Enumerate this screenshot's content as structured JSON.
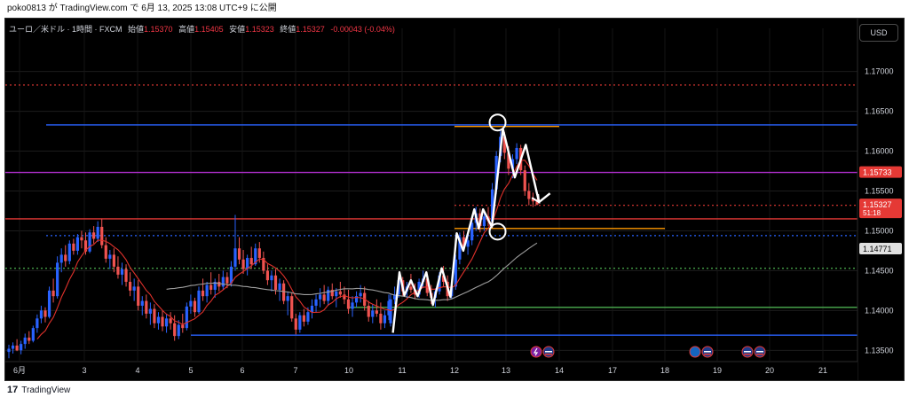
{
  "header": {
    "published": "poko0813 が TradingView.com で 6月 13, 2025 13:08 UTC+9 に公開"
  },
  "legend": {
    "symbol": "ユーロ／米ドル · 1時間 · FXCM",
    "open_label": "始値",
    "open": "1.15370",
    "high_label": "高値",
    "high": "1.15405",
    "low_label": "安値",
    "low": "1.15323",
    "close_label": "終値",
    "close": "1.15327",
    "change": "-0.00043 (-0.04%)"
  },
  "currency_button": "USD",
  "brand": {
    "name": "TradingView",
    "logo_text": "17"
  },
  "colors": {
    "up": "#26a69a",
    "down": "#ef5350",
    "candle_body": "#2962ff",
    "ma_fast": "#e0312b",
    "ma_slow": "#9e9e9e",
    "price_tag_red": "#e53935",
    "blue_line": "#2962ff",
    "purple_line": "#b32fd0",
    "orange_line": "#ff9800",
    "green_line": "#4caf50"
  },
  "chart_data": {
    "type": "candlestick",
    "interval": "1時間",
    "symbol": "EURUSD",
    "x_tick_labels": [
      "6月",
      "3",
      "4",
      "5",
      "6",
      "7",
      "10",
      "11",
      "12",
      "13",
      "14",
      "17",
      "18",
      "19",
      "20",
      "21"
    ],
    "y_tick_labels": [
      "1.17000",
      "1.16500",
      "1.16000",
      "1.15500",
      "1.15000",
      "1.14500",
      "1.14000",
      "1.13500"
    ],
    "ylim": [
      1.1337,
      1.1743
    ],
    "price_tags": [
      {
        "value": 1.15733,
        "text": "1.15733",
        "color": "#e53935"
      },
      {
        "value": 1.15327,
        "text": "1.15327",
        "sub": "51:18",
        "color": "#e53935"
      },
      {
        "value": 1.14771,
        "text": "1.14771",
        "color": "#e0e0e0"
      }
    ],
    "horizontal_lines": [
      {
        "price": 1.1683,
        "style": "dotted",
        "color": "#e53935",
        "from": "start",
        "to": "end"
      },
      {
        "price": 1.1633,
        "style": "solid",
        "color": "#2962ff",
        "from": "6/2",
        "to": "end"
      },
      {
        "price": 1.1631,
        "style": "solid",
        "color": "#ff9800",
        "from": "6/12",
        "to": "6/14"
      },
      {
        "price": 1.15733,
        "style": "solid",
        "color": "#b32fd0",
        "from": "start",
        "to": "end"
      },
      {
        "price": 1.1532,
        "style": "dotted",
        "color": "#e53935",
        "from": "6/12",
        "to": "end"
      },
      {
        "price": 1.1515,
        "style": "solid",
        "color": "#e53935",
        "from": "start",
        "to": "end"
      },
      {
        "price": 1.1503,
        "style": "solid",
        "color": "#ff9800",
        "from": "6/12",
        "to": "6/18"
      },
      {
        "price": 1.1494,
        "style": "dotted",
        "color": "#2962ff",
        "from": "6/2",
        "to": "end"
      },
      {
        "price": 1.1453,
        "style": "dotted",
        "color": "#4caf50",
        "from": "start",
        "to": "end"
      },
      {
        "price": 1.1404,
        "style": "solid",
        "color": "#4caf50",
        "from": "6/10",
        "to": "end"
      },
      {
        "price": 1.1369,
        "style": "solid",
        "color": "#2962ff",
        "from": "6/5",
        "to": "end"
      }
    ],
    "trend_path": [
      {
        "t": "6/10 20h",
        "price": 1.1372
      },
      {
        "t": "6/10 23h",
        "price": 1.1448
      },
      {
        "t": "6/11 1h",
        "price": 1.1419
      },
      {
        "t": "6/11 4h",
        "price": 1.1438
      },
      {
        "t": "6/11 7h",
        "price": 1.1418
      },
      {
        "t": "6/11 11h",
        "price": 1.1448
      },
      {
        "t": "6/11 14h",
        "price": 1.1407
      },
      {
        "t": "6/11 18h",
        "price": 1.1453
      },
      {
        "t": "6/11 22h",
        "price": 1.1417
      },
      {
        "t": "6/12 1h",
        "price": 1.1497
      },
      {
        "t": "6/12 4h",
        "price": 1.1475
      },
      {
        "t": "6/12 9h",
        "price": 1.1527
      },
      {
        "t": "6/12 11h",
        "price": 1.1503
      },
      {
        "t": "6/12 13h",
        "price": 1.1527
      },
      {
        "t": "6/12 17h",
        "price": 1.1505
      },
      {
        "t": "6/12 22h",
        "price": 1.1628
      },
      {
        "t": "6/13 4h",
        "price": 1.1567
      },
      {
        "t": "6/13 9h",
        "price": 1.1608
      },
      {
        "t": "6/13 15h",
        "price": 1.1536
      },
      {
        "t": "6/13 20h",
        "price": 1.1547
      }
    ],
    "circled_points": [
      {
        "t": "6/12 22h",
        "price": 1.1636
      },
      {
        "t": "6/12 22h",
        "price": 1.1499
      }
    ],
    "event_icons": [
      {
        "date": "6/13",
        "names": [
          "lightning-icon",
          "us-flag-icon"
        ]
      },
      {
        "date": "6/18",
        "names": [
          "eu-flag-icon",
          "us-flag-icon"
        ]
      },
      {
        "date": "6/19",
        "names": [
          "us-flag-icon",
          "us-flag-icon"
        ]
      }
    ],
    "candles_note": "hourly OHLC approximations",
    "candles": [
      [
        1.1348,
        1.1357,
        1.134,
        1.1352
      ],
      [
        1.1352,
        1.136,
        1.1346,
        1.1356
      ],
      [
        1.1356,
        1.1364,
        1.1349,
        1.135
      ],
      [
        1.135,
        1.1362,
        1.1345,
        1.1358
      ],
      [
        1.1358,
        1.1371,
        1.1352,
        1.1366
      ],
      [
        1.1366,
        1.1374,
        1.1358,
        1.1362
      ],
      [
        1.1362,
        1.1381,
        1.136,
        1.1378
      ],
      [
        1.1378,
        1.1395,
        1.1372,
        1.139
      ],
      [
        1.139,
        1.1406,
        1.1384,
        1.14
      ],
      [
        1.14,
        1.1404,
        1.1385,
        1.1392
      ],
      [
        1.1392,
        1.143,
        1.139,
        1.1425
      ],
      [
        1.1425,
        1.144,
        1.141,
        1.1418
      ],
      [
        1.1418,
        1.1468,
        1.1415,
        1.146
      ],
      [
        1.146,
        1.1478,
        1.1448,
        1.147
      ],
      [
        1.147,
        1.1482,
        1.1455,
        1.1462
      ],
      [
        1.1462,
        1.1488,
        1.1458,
        1.1484
      ],
      [
        1.1484,
        1.149,
        1.147,
        1.1475
      ],
      [
        1.1475,
        1.1496,
        1.147,
        1.1492
      ],
      [
        1.1492,
        1.15,
        1.1478,
        1.1488
      ],
      [
        1.1488,
        1.1498,
        1.147,
        1.1474
      ],
      [
        1.1474,
        1.1502,
        1.1472,
        1.1498
      ],
      [
        1.1498,
        1.1506,
        1.1484,
        1.149
      ],
      [
        1.149,
        1.1512,
        1.1486,
        1.1505
      ],
      [
        1.1505,
        1.1515,
        1.1478,
        1.1482
      ],
      [
        1.1482,
        1.1492,
        1.146,
        1.1465
      ],
      [
        1.1465,
        1.1476,
        1.1452,
        1.147
      ],
      [
        1.147,
        1.1478,
        1.1448,
        1.1455
      ],
      [
        1.1455,
        1.1468,
        1.144,
        1.1445
      ],
      [
        1.1445,
        1.146,
        1.1432,
        1.1452
      ],
      [
        1.1452,
        1.1458,
        1.143,
        1.1436
      ],
      [
        1.1436,
        1.1448,
        1.1418,
        1.1425
      ],
      [
        1.1425,
        1.144,
        1.1412,
        1.143
      ],
      [
        1.143,
        1.1438,
        1.14,
        1.1406
      ],
      [
        1.1406,
        1.1418,
        1.1394,
        1.1412
      ],
      [
        1.1412,
        1.142,
        1.139,
        1.1396
      ],
      [
        1.1396,
        1.141,
        1.1382,
        1.1402
      ],
      [
        1.1402,
        1.1408,
        1.1378,
        1.1384
      ],
      [
        1.1384,
        1.1398,
        1.1376,
        1.1392
      ],
      [
        1.1392,
        1.14,
        1.1374,
        1.138
      ],
      [
        1.138,
        1.1396,
        1.1372,
        1.139
      ],
      [
        1.139,
        1.1398,
        1.1376,
        1.1384
      ],
      [
        1.1384,
        1.1394,
        1.1362,
        1.1368
      ],
      [
        1.1368,
        1.1388,
        1.1364,
        1.1382
      ],
      [
        1.1382,
        1.1396,
        1.1372,
        1.1378
      ],
      [
        1.1378,
        1.141,
        1.1375,
        1.1405
      ],
      [
        1.1405,
        1.142,
        1.1396,
        1.1412
      ],
      [
        1.1412,
        1.1416,
        1.1392,
        1.1398
      ],
      [
        1.1398,
        1.143,
        1.1396,
        1.1425
      ],
      [
        1.1425,
        1.144,
        1.1412,
        1.1418
      ],
      [
        1.1418,
        1.1436,
        1.141,
        1.1432
      ],
      [
        1.1432,
        1.1448,
        1.142,
        1.1426
      ],
      [
        1.1426,
        1.144,
        1.1416,
        1.1436
      ],
      [
        1.1436,
        1.1446,
        1.1424,
        1.143
      ],
      [
        1.143,
        1.145,
        1.1426,
        1.1442
      ],
      [
        1.1442,
        1.1448,
        1.1428,
        1.1434
      ],
      [
        1.1434,
        1.1462,
        1.143,
        1.1455
      ],
      [
        1.1455,
        1.152,
        1.145,
        1.1478
      ],
      [
        1.1478,
        1.1492,
        1.1458,
        1.1464
      ],
      [
        1.1464,
        1.1476,
        1.1446,
        1.1452
      ],
      [
        1.1452,
        1.147,
        1.1444,
        1.1466
      ],
      [
        1.1466,
        1.148,
        1.1452,
        1.1458
      ],
      [
        1.1458,
        1.1484,
        1.1456,
        1.1478
      ],
      [
        1.1478,
        1.1486,
        1.146,
        1.1466
      ],
      [
        1.1466,
        1.1474,
        1.1446,
        1.145
      ],
      [
        1.145,
        1.1458,
        1.1432,
        1.1438
      ],
      [
        1.1438,
        1.145,
        1.1424,
        1.1444
      ],
      [
        1.1444,
        1.1452,
        1.142,
        1.1426
      ],
      [
        1.1426,
        1.144,
        1.1412,
        1.1434
      ],
      [
        1.1434,
        1.1438,
        1.1408,
        1.1412
      ],
      [
        1.1412,
        1.1424,
        1.1394,
        1.1418
      ],
      [
        1.1418,
        1.1422,
        1.1386,
        1.139
      ],
      [
        1.139,
        1.1396,
        1.137,
        1.1376
      ],
      [
        1.1376,
        1.1398,
        1.1372,
        1.1394
      ],
      [
        1.1394,
        1.1402,
        1.138,
        1.1386
      ],
      [
        1.1386,
        1.1404,
        1.1382,
        1.1398
      ],
      [
        1.1398,
        1.1414,
        1.139,
        1.1406
      ],
      [
        1.1406,
        1.142,
        1.1398,
        1.1414
      ],
      [
        1.1414,
        1.1428,
        1.1404,
        1.142
      ],
      [
        1.142,
        1.1432,
        1.1408,
        1.1412
      ],
      [
        1.1412,
        1.143,
        1.1406,
        1.1426
      ],
      [
        1.1426,
        1.1434,
        1.1414,
        1.1418
      ],
      [
        1.1418,
        1.1428,
        1.1404,
        1.1424
      ],
      [
        1.1424,
        1.1436,
        1.1416,
        1.142
      ],
      [
        1.142,
        1.143,
        1.1408,
        1.1414
      ],
      [
        1.1414,
        1.1426,
        1.1396,
        1.1402
      ],
      [
        1.1402,
        1.1418,
        1.1392,
        1.141
      ],
      [
        1.141,
        1.1424,
        1.1404,
        1.1418
      ],
      [
        1.1418,
        1.1432,
        1.141,
        1.1422
      ],
      [
        1.1422,
        1.143,
        1.14,
        1.1406
      ],
      [
        1.1406,
        1.1412,
        1.1386,
        1.1392
      ],
      [
        1.1392,
        1.1408,
        1.1384,
        1.14
      ],
      [
        1.14,
        1.1414,
        1.1392,
        1.1396
      ],
      [
        1.1396,
        1.141,
        1.1376,
        1.1384
      ],
      [
        1.1384,
        1.14,
        1.1378,
        1.1394
      ],
      [
        1.1394,
        1.142,
        1.1388,
        1.1412
      ]
    ],
    "candles_late": [
      [
        1.1384,
        1.142,
        1.138,
        1.1414
      ],
      [
        1.1414,
        1.143,
        1.1408,
        1.142
      ],
      [
        1.142,
        1.1444,
        1.1416,
        1.1438
      ],
      [
        1.1438,
        1.1442,
        1.1418,
        1.1424
      ],
      [
        1.1424,
        1.1436,
        1.1416,
        1.143
      ],
      [
        1.143,
        1.1446,
        1.1422,
        1.1426
      ],
      [
        1.1426,
        1.1434,
        1.1414,
        1.142
      ],
      [
        1.142,
        1.144,
        1.1416,
        1.1436
      ],
      [
        1.1436,
        1.145,
        1.1428,
        1.144
      ],
      [
        1.144,
        1.1446,
        1.1418,
        1.1422
      ],
      [
        1.1422,
        1.1432,
        1.1408,
        1.1416
      ],
      [
        1.1416,
        1.1428,
        1.1404,
        1.1424
      ],
      [
        1.1424,
        1.1448,
        1.142,
        1.1444
      ],
      [
        1.1444,
        1.1456,
        1.143,
        1.1436
      ],
      [
        1.1436,
        1.1444,
        1.1412,
        1.1418
      ],
      [
        1.1418,
        1.1436,
        1.1414,
        1.143
      ],
      [
        1.143,
        1.147,
        1.1426,
        1.1464
      ],
      [
        1.1464,
        1.1498,
        1.1458,
        1.1492
      ],
      [
        1.1492,
        1.15,
        1.1474,
        1.148
      ],
      [
        1.148,
        1.1496,
        1.147,
        1.1488
      ],
      [
        1.1488,
        1.1516,
        1.1482,
        1.151
      ],
      [
        1.151,
        1.153,
        1.15,
        1.1522
      ],
      [
        1.1522,
        1.1528,
        1.1498,
        1.1506
      ],
      [
        1.1506,
        1.1524,
        1.15,
        1.1518
      ],
      [
        1.1518,
        1.153,
        1.1506,
        1.1512
      ],
      [
        1.1512,
        1.156,
        1.1508,
        1.1552
      ],
      [
        1.1552,
        1.16,
        1.1546,
        1.1594
      ],
      [
        1.1594,
        1.1628,
        1.1586,
        1.1618
      ],
      [
        1.1618,
        1.1624,
        1.159,
        1.1598
      ],
      [
        1.1598,
        1.1606,
        1.157,
        1.1578
      ],
      [
        1.1578,
        1.1596,
        1.1566,
        1.159
      ],
      [
        1.159,
        1.161,
        1.1584,
        1.1604
      ],
      [
        1.1604,
        1.1608,
        1.157,
        1.1576
      ],
      [
        1.1576,
        1.1582,
        1.1544,
        1.155
      ],
      [
        1.155,
        1.156,
        1.1532,
        1.154
      ],
      [
        1.154,
        1.1548,
        1.153,
        1.1537
      ],
      [
        1.1537,
        1.154,
        1.1532,
        1.1533
      ]
    ]
  }
}
